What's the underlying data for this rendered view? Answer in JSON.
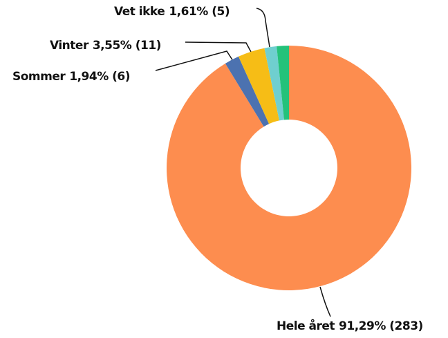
{
  "chart_data": {
    "type": "donut",
    "categories": [
      "Hele året",
      "Sommer",
      "Vinter",
      "Vet ikke",
      null
    ],
    "values": [
      91.29,
      1.94,
      3.55,
      1.61,
      1.61
    ],
    "value_labels": [
      "91,29% (283)",
      "1,94% (6)",
      "3,55% (11)",
      "1,61% (5)",
      null
    ],
    "colors": [
      "#fd8d4f",
      "#4c72b0",
      "#f6bd16",
      "#6fcfcf",
      "#24c27a"
    ]
  }
}
